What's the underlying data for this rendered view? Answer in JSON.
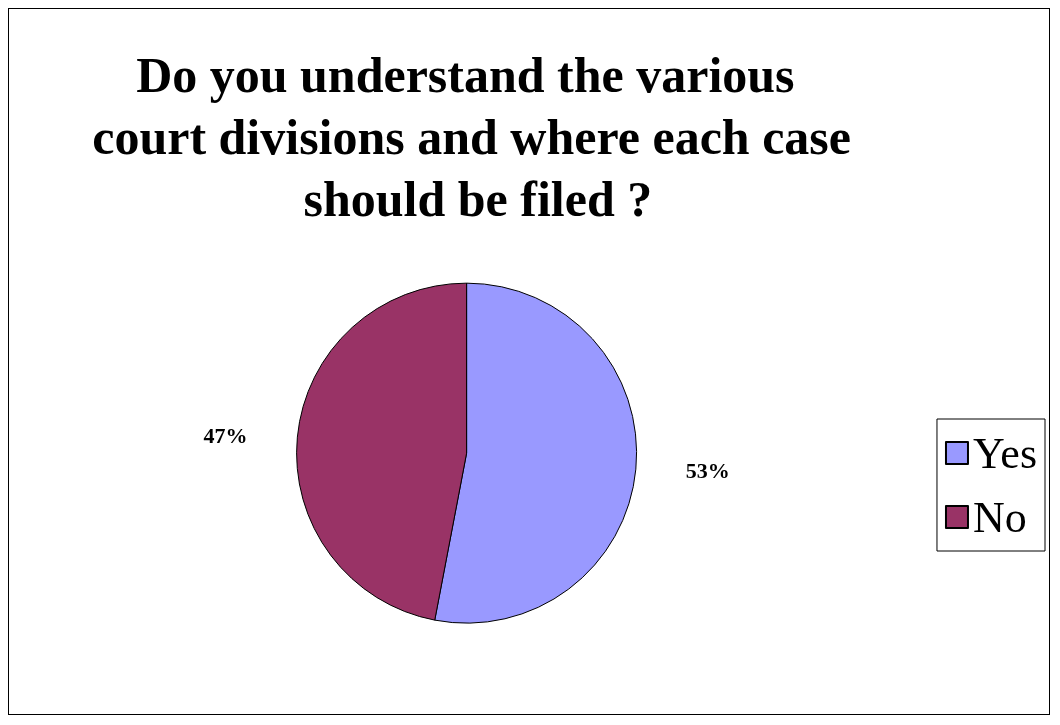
{
  "chart_data": {
    "type": "pie",
    "title": "Do you understand the various court divisions and where each case should be filed ?",
    "categories": [
      "Yes",
      "No"
    ],
    "values": [
      53,
      47
    ],
    "value_labels": [
      "53%",
      "47%"
    ],
    "colors": [
      "#9999ff",
      "#993366"
    ],
    "legend": "right"
  }
}
